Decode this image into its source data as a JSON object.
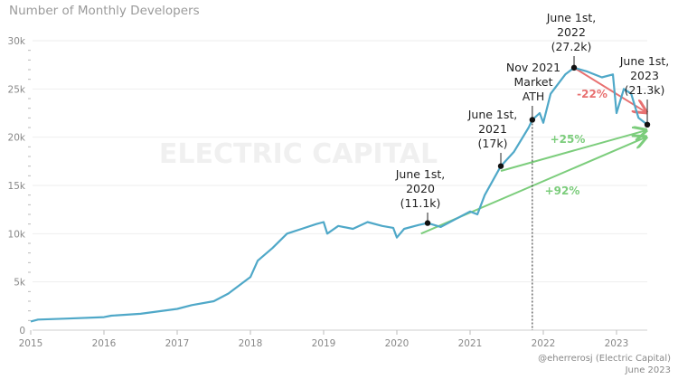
{
  "chart_data": {
    "type": "line",
    "title": "Number of Monthly Developers",
    "xlim": [
      2015,
      2023.42
    ],
    "ylim": [
      0,
      30000
    ],
    "x_ticks": [
      "2015",
      "2016",
      "2017",
      "2018",
      "2019",
      "2020",
      "2021",
      "2022",
      "2023"
    ],
    "y_ticks": [
      {
        "v": 0,
        "label": "0"
      },
      {
        "v": 5000,
        "label": "5k"
      },
      {
        "v": 10000,
        "label": "10k"
      },
      {
        "v": 15000,
        "label": "15k"
      },
      {
        "v": 20000,
        "label": "20k"
      },
      {
        "v": 25000,
        "label": "25k"
      },
      {
        "v": 30000,
        "label": "30k"
      }
    ],
    "grid": true,
    "line_color": "#4fa8c8",
    "series": [
      {
        "x": [
          2015.0,
          2015.1,
          2015.5,
          2016.0,
          2016.1,
          2016.5,
          2017.0,
          2017.2,
          2017.5,
          2017.7,
          2018.0,
          2018.1,
          2018.3,
          2018.5,
          2018.7,
          2018.9,
          2019.0,
          2019.05,
          2019.2,
          2019.4,
          2019.6,
          2019.8,
          2019.95,
          2020.0,
          2020.1,
          2020.3,
          2020.42,
          2020.6,
          2020.8,
          2021.0,
          2021.1,
          2021.2,
          2021.42,
          2021.6,
          2021.8,
          2021.85,
          2021.95,
          2022.0,
          2022.1,
          2022.3,
          2022.42,
          2022.6,
          2022.8,
          2022.95,
          2023.0,
          2023.1,
          2023.2,
          2023.3,
          2023.42
        ],
        "y": [
          900,
          1100,
          1200,
          1350,
          1500,
          1700,
          2200,
          2600,
          3000,
          3800,
          5500,
          7200,
          8500,
          10000,
          10500,
          11000,
          11200,
          10000,
          10800,
          10500,
          11200,
          10800,
          10600,
          9600,
          10500,
          10900,
          11100,
          10700,
          11500,
          12300,
          12000,
          14000,
          17000,
          18500,
          21000,
          21800,
          22500,
          21500,
          24500,
          26500,
          27200,
          26800,
          26200,
          26500,
          22500,
          25000,
          24500,
          22000,
          21300
        ]
      }
    ],
    "annotations": [
      {
        "x": 2020.42,
        "y": 11100,
        "lines": [
          "June 1st,",
          "2020",
          "(11.1k)"
        ]
      },
      {
        "x": 2021.42,
        "y": 17000,
        "lines": [
          "June 1st,",
          "2021",
          "(17k)"
        ]
      },
      {
        "x": 2021.85,
        "y": 21800,
        "lines": [
          "Nov 2021",
          "Market",
          "ATH"
        ],
        "dotted_line": true
      },
      {
        "x": 2022.42,
        "y": 27200,
        "lines": [
          "June 1st,",
          "2022",
          "(27.2k)"
        ]
      },
      {
        "x": 2023.42,
        "y": 21300,
        "lines": [
          "June 1st,",
          "2023",
          "(21.3k)"
        ]
      }
    ],
    "arrows": [
      {
        "from": [
          2020.33,
          10000
        ],
        "to": [
          2023.4,
          20000
        ],
        "label": "+92%",
        "color": "#7ccd7c"
      },
      {
        "from": [
          2021.42,
          16500
        ],
        "to": [
          2023.4,
          20700
        ],
        "label": "+25%",
        "color": "#7ccd7c"
      },
      {
        "from": [
          2022.42,
          27200
        ],
        "to": [
          2023.4,
          22600
        ],
        "label": "-22%",
        "color": "#e87070"
      }
    ]
  },
  "watermark": "ELECTRIC CAPITAL",
  "credit": {
    "author": "@eherrerosj (Electric Capital)",
    "date": "June 2023"
  }
}
